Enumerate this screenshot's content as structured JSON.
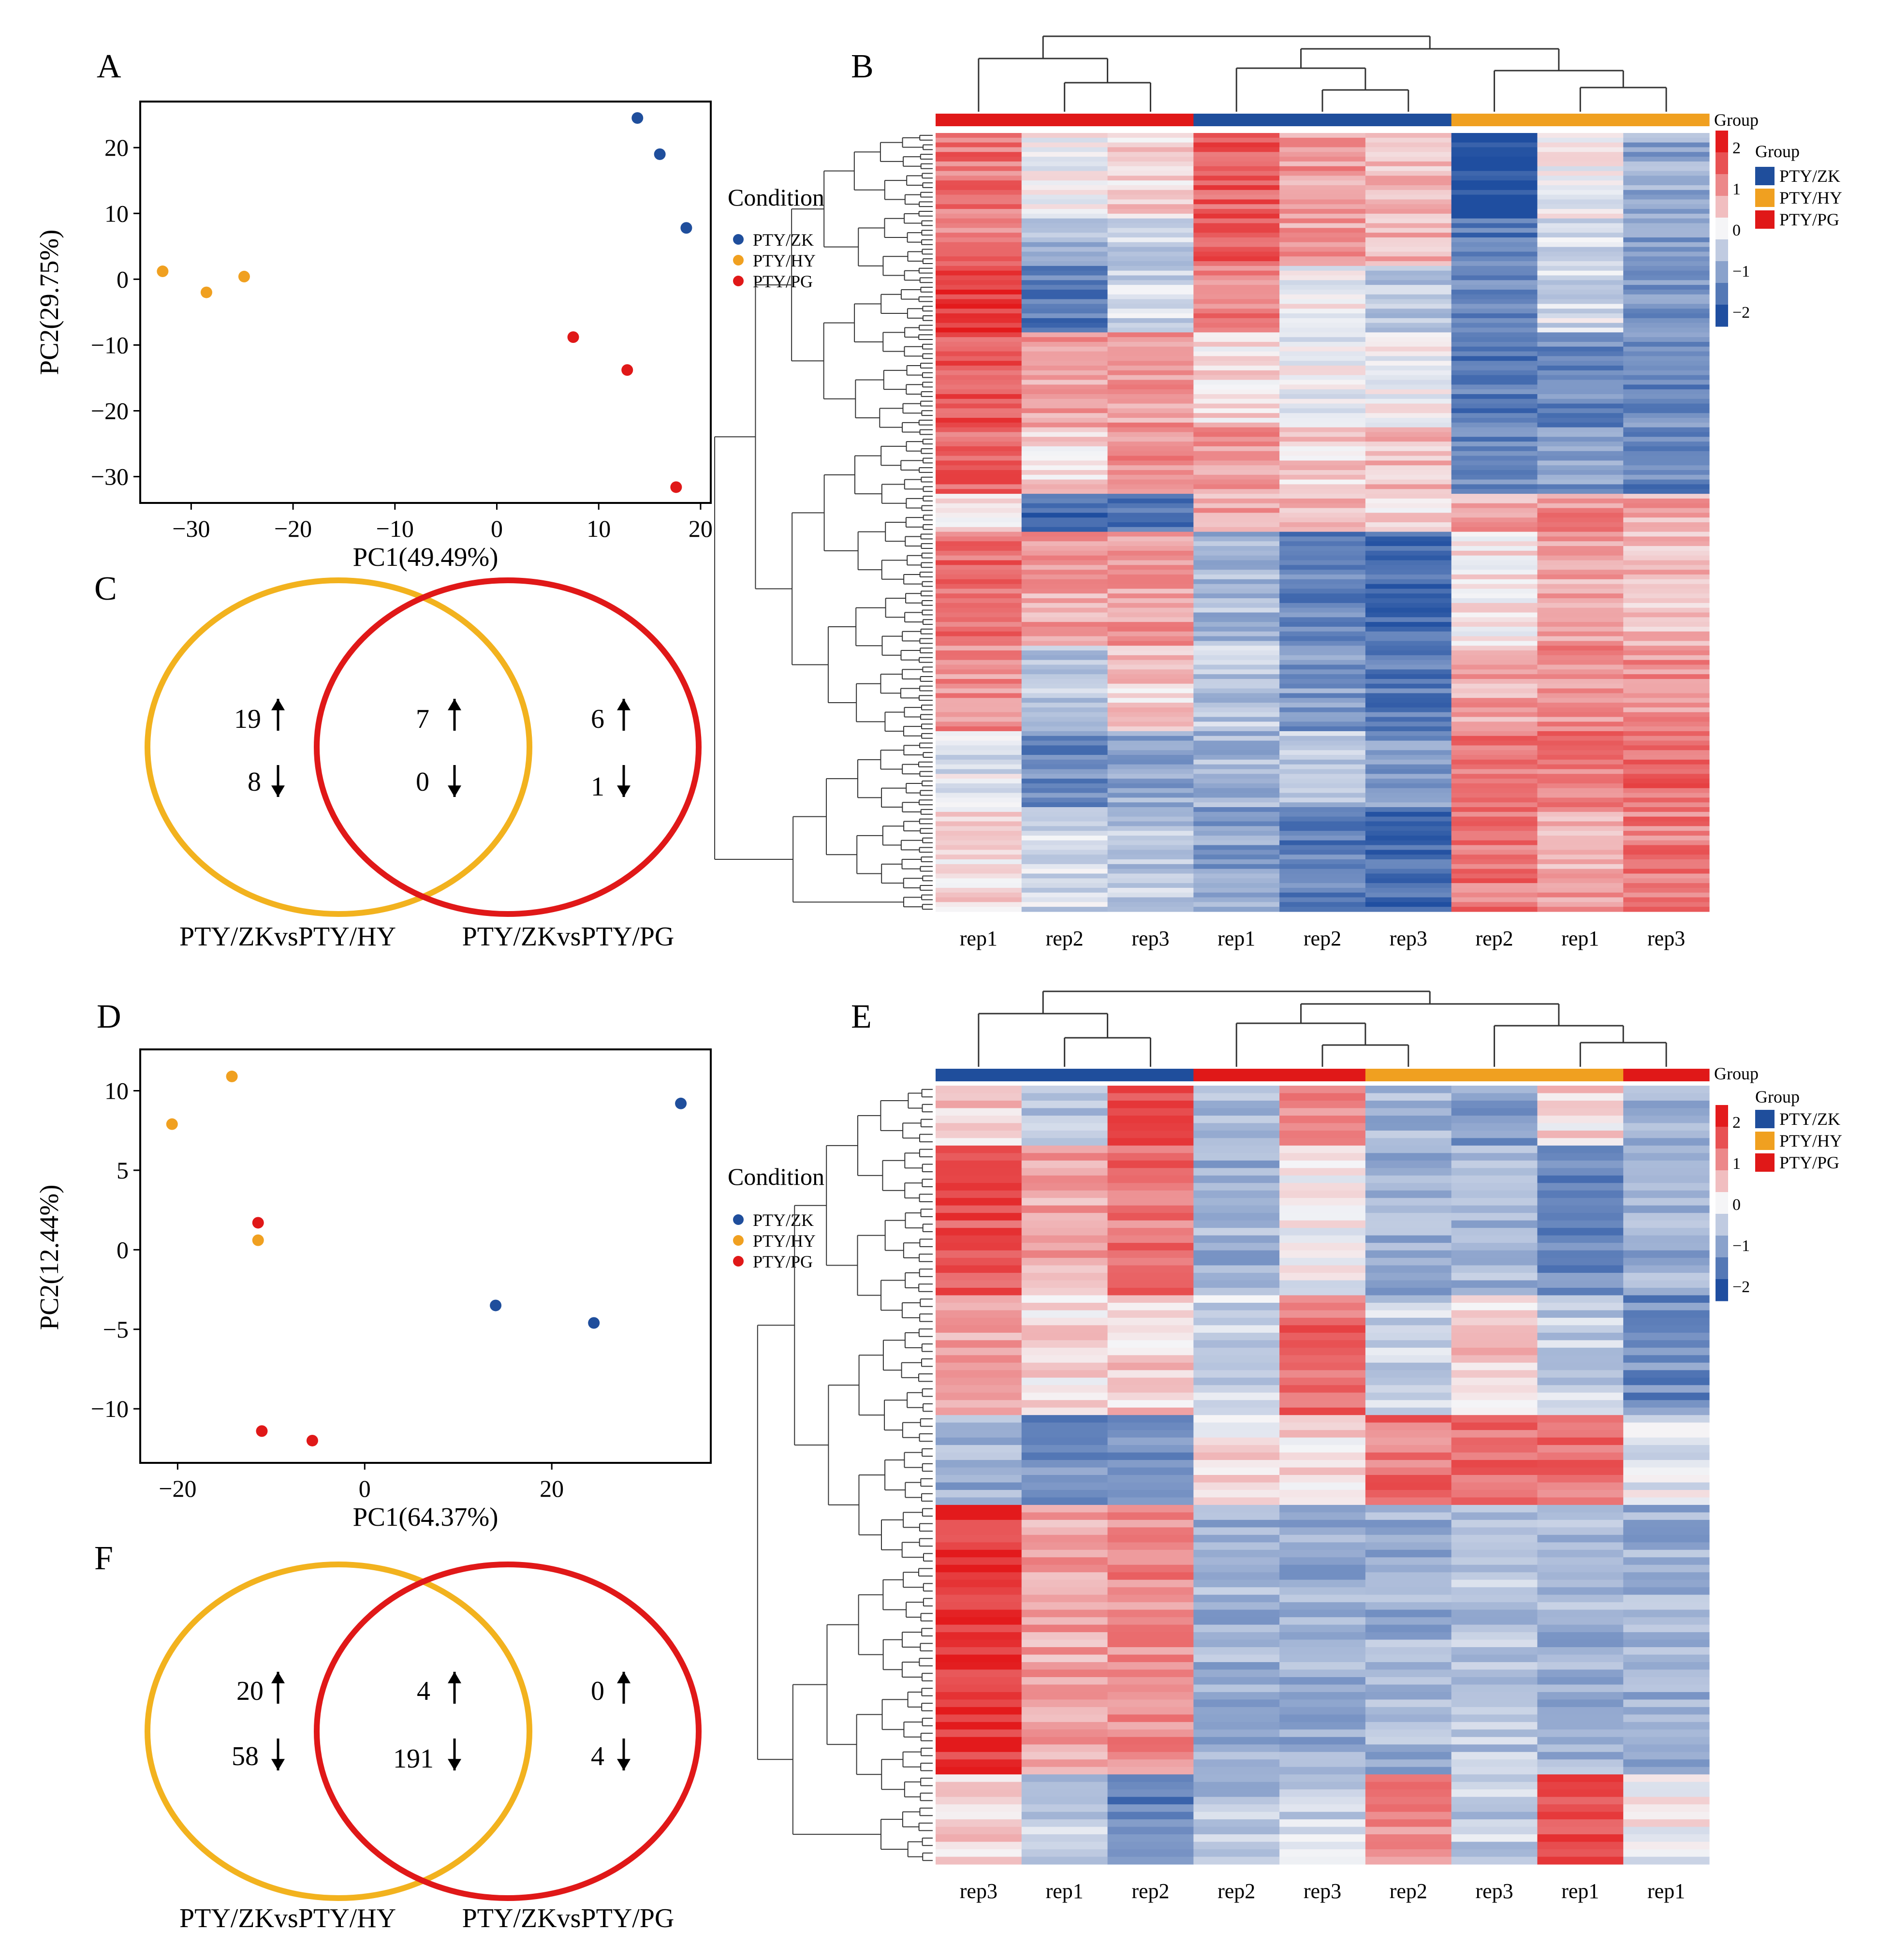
{
  "colors": {
    "PTY/ZK": "#1f4e9c",
    "PTY/HY": "#f0a020",
    "PTY/PG": "#e01818",
    "venn_left": "#f2b21e",
    "venn_right": "#e01818",
    "heat_high": "#e31a1c",
    "heat_mid": "#f5f5f7",
    "heat_low": "#1f4ea0"
  },
  "panel_labels": {
    "A": "A",
    "B": "B",
    "C": "C",
    "D": "D",
    "E": "E",
    "F": "F"
  },
  "chart_data": [
    {
      "id": "A",
      "type": "scatter",
      "title": "",
      "xlabel": "PC1(49.49%)",
      "ylabel": "PC2(29.75%)",
      "xlim": [
        -35,
        21
      ],
      "ylim": [
        -34,
        27
      ],
      "xticks": [
        -30,
        -20,
        -10,
        0,
        10,
        20
      ],
      "yticks": [
        20,
        10,
        0,
        -10,
        -20,
        -30
      ],
      "xtick_labels": [
        "−30",
        "−20",
        "−10",
        "0",
        "10",
        "20"
      ],
      "ytick_labels": [
        "20",
        "10",
        "0",
        "−10",
        "−20",
        "−30"
      ],
      "legend_title": "Condition",
      "series": [
        {
          "name": "PTY/ZK",
          "points": [
            [
              13.8,
              24.5
            ],
            [
              16.0,
              19.0
            ],
            [
              18.6,
              7.8
            ]
          ]
        },
        {
          "name": "PTY/HY",
          "points": [
            [
              -32.8,
              1.2
            ],
            [
              -28.5,
              -2.0
            ],
            [
              -24.8,
              0.4
            ]
          ]
        },
        {
          "name": "PTY/PG",
          "points": [
            [
              7.5,
              -8.8
            ],
            [
              12.8,
              -13.8
            ],
            [
              17.6,
              -31.6
            ]
          ]
        }
      ]
    },
    {
      "id": "D",
      "type": "scatter",
      "title": "",
      "xlabel": "PC1(64.37%)",
      "ylabel": "PC2(12.44%)",
      "xlim": [
        -24,
        37
      ],
      "ylim": [
        -13.4,
        12.6
      ],
      "xticks": [
        -20,
        0,
        20
      ],
      "yticks": [
        10,
        5,
        0,
        -5,
        -10
      ],
      "xtick_labels": [
        "−20",
        "0",
        "20"
      ],
      "ytick_labels": [
        "10",
        "5",
        "0",
        "−5",
        "−10"
      ],
      "legend_title": "Condition",
      "series": [
        {
          "name": "PTY/ZK",
          "points": [
            [
              33.8,
              9.2
            ],
            [
              14.0,
              -3.5
            ],
            [
              24.5,
              -4.6
            ]
          ]
        },
        {
          "name": "PTY/HY",
          "points": [
            [
              -20.6,
              7.9
            ],
            [
              -14.2,
              10.9
            ],
            [
              -11.4,
              0.6
            ]
          ]
        },
        {
          "name": "PTY/PG",
          "points": [
            [
              -11.4,
              1.7
            ],
            [
              -11.0,
              -11.4
            ],
            [
              -5.6,
              -12.0
            ]
          ]
        }
      ]
    },
    {
      "id": "B",
      "type": "heatmap",
      "group_label": "Group",
      "legend_title": "Group",
      "legend_groups": [
        "PTY/ZK",
        "PTY/HY",
        "PTY/PG"
      ],
      "colorbar_ticks": [
        "2",
        "1",
        "0",
        "−1",
        "−2"
      ],
      "columns": [
        {
          "label": "rep1",
          "group": "PTY/PG"
        },
        {
          "label": "rep2",
          "group": "PTY/PG"
        },
        {
          "label": "rep3",
          "group": "PTY/PG"
        },
        {
          "label": "rep1",
          "group": "PTY/ZK"
        },
        {
          "label": "rep2",
          "group": "PTY/ZK"
        },
        {
          "label": "rep3",
          "group": "PTY/ZK"
        },
        {
          "label": "rep2",
          "group": "PTY/HY"
        },
        {
          "label": "rep1",
          "group": "PTY/HY"
        },
        {
          "label": "rep3",
          "group": "PTY/HY"
        }
      ],
      "row_blocks": [
        {
          "rows": 18,
          "values": [
            1.3,
            0.0,
            0.4,
            1.5,
            0.9,
            0.6,
            -2.3,
            0.0,
            -1.0
          ]
        },
        {
          "rows": 10,
          "values": [
            1.2,
            -0.9,
            -0.4,
            1.5,
            0.9,
            0.7,
            -1.6,
            -0.3,
            -1.2
          ]
        },
        {
          "rows": 14,
          "values": [
            2.0,
            -1.6,
            -0.4,
            1.2,
            0.0,
            -0.6,
            -1.4,
            -0.3,
            -1.2
          ]
        },
        {
          "rows": 20,
          "values": [
            1.6,
            0.9,
            0.9,
            0.3,
            -0.1,
            0.0,
            -1.6,
            -1.4,
            -1.4
          ]
        },
        {
          "rows": 14,
          "values": [
            1.4,
            0.3,
            1.0,
            0.9,
            0.4,
            0.6,
            -1.5,
            -1.2,
            -1.5
          ]
        },
        {
          "rows": 8,
          "values": [
            0.2,
            -1.8,
            -1.6,
            0.8,
            0.6,
            0.3,
            0.8,
            1.0,
            0.8
          ]
        },
        {
          "rows": 24,
          "values": [
            1.4,
            0.8,
            0.9,
            -0.8,
            -1.5,
            -1.8,
            0.2,
            0.8,
            0.6
          ]
        },
        {
          "rows": 18,
          "values": [
            1.0,
            -0.6,
            0.4,
            -0.6,
            -1.2,
            -1.6,
            0.8,
            1.0,
            1.0
          ]
        },
        {
          "rows": 16,
          "values": [
            -0.2,
            -1.4,
            -1.0,
            -0.8,
            -0.6,
            -1.2,
            1.2,
            1.3,
            1.4
          ]
        },
        {
          "rows": 22,
          "values": [
            0.3,
            -0.4,
            -0.6,
            -1.1,
            -1.6,
            -1.8,
            1.3,
            0.8,
            1.2
          ]
        }
      ]
    },
    {
      "id": "E",
      "type": "heatmap",
      "group_label": "Group",
      "legend_title": "Group",
      "legend_groups": [
        "PTY/ZK",
        "PTY/HY",
        "PTY/PG"
      ],
      "colorbar_ticks": [
        "2",
        "1",
        "0",
        "−1",
        "−2"
      ],
      "columns": [
        {
          "label": "rep3",
          "group": "PTY/ZK"
        },
        {
          "label": "rep1",
          "group": "PTY/ZK"
        },
        {
          "label": "rep2",
          "group": "PTY/ZK"
        },
        {
          "label": "rep2",
          "group": "PTY/PG"
        },
        {
          "label": "rep3",
          "group": "PTY/PG"
        },
        {
          "label": "rep2",
          "group": "PTY/HY"
        },
        {
          "label": "rep3",
          "group": "PTY/HY"
        },
        {
          "label": "rep1",
          "group": "PTY/HY"
        },
        {
          "label": "rep1",
          "group": "PTY/PG"
        }
      ],
      "row_blocks": [
        {
          "rows": 8,
          "values": [
            0.4,
            -0.6,
            1.8,
            -0.9,
            1.0,
            -0.9,
            -1.2,
            0.3,
            -0.8
          ]
        },
        {
          "rows": 20,
          "values": [
            1.6,
            0.8,
            1.3,
            -0.9,
            0.0,
            -0.9,
            -0.9,
            -1.4,
            -0.9
          ]
        },
        {
          "rows": 16,
          "values": [
            0.8,
            0.3,
            0.4,
            -0.4,
            1.4,
            -0.4,
            0.4,
            -0.5,
            -1.4
          ]
        },
        {
          "rows": 12,
          "values": [
            -0.9,
            -1.4,
            -1.4,
            0.2,
            0.3,
            1.3,
            1.3,
            1.3,
            -0.2
          ]
        },
        {
          "rows": 36,
          "values": [
            2.0,
            0.8,
            1.1,
            -0.9,
            -0.9,
            -0.9,
            -0.6,
            -0.9,
            -0.9
          ]
        },
        {
          "rows": 12,
          "values": [
            0.3,
            -0.5,
            -1.5,
            -0.7,
            -0.4,
            1.0,
            -0.5,
            1.7,
            0.0
          ]
        }
      ]
    },
    {
      "id": "C",
      "type": "venn",
      "left_label": "PTY/ZKvsPTY/HY",
      "right_label": "PTY/ZKvsPTY/PG",
      "regions": [
        {
          "name": "left-only",
          "up": "19",
          "down": "8"
        },
        {
          "name": "overlap",
          "up": "7",
          "down": "0"
        },
        {
          "name": "right-only",
          "up": "6",
          "down": "1"
        }
      ]
    },
    {
      "id": "F",
      "type": "venn",
      "left_label": "PTY/ZKvsPTY/HY",
      "right_label": "PTY/ZKvsPTY/PG",
      "regions": [
        {
          "name": "left-only",
          "up": "20",
          "down": "58"
        },
        {
          "name": "overlap",
          "up": "4",
          "down": "191"
        },
        {
          "name": "right-only",
          "up": "0",
          "down": "4"
        }
      ]
    }
  ]
}
